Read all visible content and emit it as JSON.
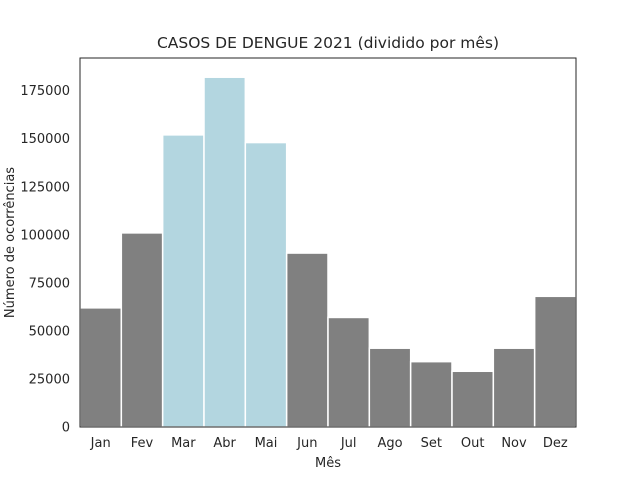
{
  "chart_data": {
    "type": "bar",
    "title": "CASOS DE DENGUE 2021 (dividido por mês)",
    "xlabel": "Mês",
    "ylabel": "Número de ocorrências",
    "categories": [
      "Jan",
      "Fev",
      "Mar",
      "Abr",
      "Mai",
      "Jun",
      "Jul",
      "Ago",
      "Set",
      "Out",
      "Nov",
      "Dez"
    ],
    "values": [
      62000,
      101000,
      152000,
      182000,
      148000,
      90500,
      57000,
      41000,
      34000,
      29000,
      41000,
      68000
    ],
    "highlighted": [
      "Mar",
      "Abr",
      "Mai"
    ],
    "ylim": [
      0,
      192000
    ],
    "yticks": [
      0,
      25000,
      50000,
      75000,
      100000,
      125000,
      150000,
      175000
    ],
    "grid": false,
    "colors": {
      "default": "#808080",
      "highlight": "#b3d6e0",
      "bar_edge": "#ffffff",
      "axes": "#262626",
      "text": "#262626"
    }
  }
}
